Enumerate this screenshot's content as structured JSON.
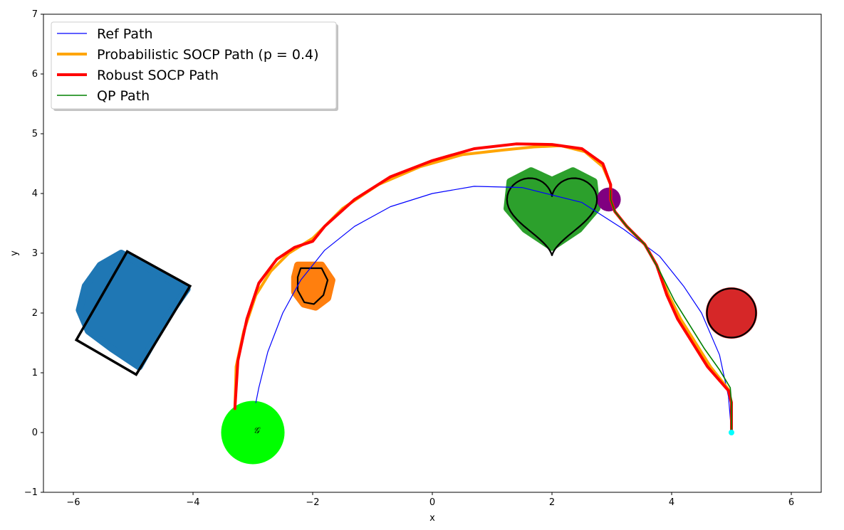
{
  "chart_data": {
    "type": "line",
    "title": "",
    "xlabel": "x",
    "ylabel": "y",
    "xlim": [
      -6.5,
      6.5
    ],
    "ylim": [
      -1,
      7
    ],
    "xticks": [
      -6,
      -4,
      -2,
      0,
      2,
      4,
      6
    ],
    "xtick_labels": [
      "−6",
      "−4",
      "−2",
      "0",
      "2",
      "4",
      "6"
    ],
    "yticks": [
      -1,
      0,
      1,
      2,
      3,
      4,
      5,
      6,
      7
    ],
    "ytick_labels": [
      "−1",
      "0",
      "1",
      "2",
      "3",
      "4",
      "5",
      "6",
      "7"
    ],
    "grid": false,
    "legend_position": "top-left",
    "series": [
      {
        "name": "Ref Path",
        "color": "#0000ff",
        "points": [
          [
            5.0,
            0.0
          ],
          [
            4.95,
            0.6
          ],
          [
            4.8,
            1.3
          ],
          [
            4.5,
            2.0
          ],
          [
            4.2,
            2.45
          ],
          [
            3.8,
            2.95
          ],
          [
            3.2,
            3.4
          ],
          [
            2.5,
            3.85
          ],
          [
            1.5,
            4.1
          ],
          [
            0.7,
            4.12
          ],
          [
            0.0,
            4.0
          ],
          [
            -0.7,
            3.78
          ],
          [
            -1.3,
            3.45
          ],
          [
            -1.8,
            3.05
          ],
          [
            -2.2,
            2.55
          ],
          [
            -2.5,
            2.0
          ],
          [
            -2.75,
            1.35
          ],
          [
            -2.9,
            0.75
          ],
          [
            -2.95,
            0.5
          ]
        ]
      },
      {
        "name": "Probabilistic SOCP Path (p = 0.4)",
        "color": "#ffa500",
        "points": [
          [
            5.0,
            0.0
          ],
          [
            5.0,
            0.5
          ],
          [
            4.95,
            0.72
          ],
          [
            4.65,
            1.1
          ],
          [
            4.4,
            1.5
          ],
          [
            4.15,
            1.9
          ],
          [
            3.95,
            2.3
          ],
          [
            3.75,
            2.8
          ],
          [
            3.55,
            3.15
          ],
          [
            3.25,
            3.45
          ],
          [
            3.05,
            3.7
          ],
          [
            2.98,
            3.9
          ],
          [
            2.98,
            4.15
          ],
          [
            2.85,
            4.45
          ],
          [
            2.55,
            4.7
          ],
          [
            2.15,
            4.8
          ],
          [
            1.7,
            4.78
          ],
          [
            1.2,
            4.73
          ],
          [
            0.5,
            4.65
          ],
          [
            -0.2,
            4.45
          ],
          [
            -0.9,
            4.15
          ],
          [
            -1.5,
            3.75
          ],
          [
            -2.0,
            3.25
          ],
          [
            -2.4,
            3.0
          ],
          [
            -2.7,
            2.7
          ],
          [
            -2.95,
            2.3
          ],
          [
            -3.15,
            1.7
          ],
          [
            -3.28,
            1.1
          ],
          [
            -3.3,
            0.4
          ]
        ]
      },
      {
        "name": "Robust SOCP Path",
        "color": "#ff0000",
        "points": [
          [
            5.0,
            0.0
          ],
          [
            5.0,
            0.5
          ],
          [
            4.95,
            0.7
          ],
          [
            4.6,
            1.1
          ],
          [
            4.35,
            1.5
          ],
          [
            4.1,
            1.9
          ],
          [
            3.92,
            2.3
          ],
          [
            3.75,
            2.8
          ],
          [
            3.55,
            3.15
          ],
          [
            3.25,
            3.45
          ],
          [
            3.05,
            3.7
          ],
          [
            2.98,
            3.9
          ],
          [
            2.98,
            4.15
          ],
          [
            2.85,
            4.5
          ],
          [
            2.5,
            4.75
          ],
          [
            2.0,
            4.82
          ],
          [
            1.4,
            4.83
          ],
          [
            0.7,
            4.75
          ],
          [
            0.0,
            4.55
          ],
          [
            -0.7,
            4.28
          ],
          [
            -1.3,
            3.9
          ],
          [
            -1.8,
            3.45
          ],
          [
            -2.0,
            3.2
          ],
          [
            -2.3,
            3.1
          ],
          [
            -2.6,
            2.9
          ],
          [
            -2.9,
            2.5
          ],
          [
            -3.1,
            1.9
          ],
          [
            -3.25,
            1.2
          ],
          [
            -3.3,
            0.4
          ]
        ]
      },
      {
        "name": "QP Path",
        "color": "#008000",
        "points": [
          [
            5.0,
            0.0
          ],
          [
            5.0,
            0.5
          ],
          [
            4.98,
            0.75
          ],
          [
            4.8,
            1.05
          ],
          [
            4.55,
            1.4
          ],
          [
            4.3,
            1.8
          ],
          [
            4.05,
            2.2
          ],
          [
            3.8,
            2.7
          ],
          [
            3.55,
            3.15
          ],
          [
            3.25,
            3.45
          ],
          [
            3.05,
            3.7
          ],
          [
            2.98,
            3.9
          ],
          [
            2.98,
            4.05
          ]
        ]
      }
    ],
    "obstacles": [
      {
        "shape": "blob",
        "color": "#1f77b4",
        "outline": [
          [
            -5.2,
            3.0
          ],
          [
            -4.55,
            2.65
          ],
          [
            -4.1,
            2.4
          ],
          [
            -4.45,
            1.9
          ],
          [
            -4.9,
            1.1
          ],
          [
            -5.35,
            1.4
          ],
          [
            -5.75,
            1.7
          ],
          [
            -5.9,
            2.05
          ],
          [
            -5.8,
            2.45
          ],
          [
            -5.55,
            2.8
          ]
        ]
      },
      {
        "shape": "polygon",
        "color": "#000000",
        "outline": [
          [
            -5.1,
            3.03
          ],
          [
            -4.05,
            2.45
          ],
          [
            -4.95,
            0.97
          ],
          [
            -5.95,
            1.55
          ]
        ]
      },
      {
        "shape": "blob",
        "color": "#ff7f0e",
        "outline": [
          [
            -2.25,
            2.8
          ],
          [
            -1.85,
            2.8
          ],
          [
            -1.68,
            2.55
          ],
          [
            -1.75,
            2.25
          ],
          [
            -1.95,
            2.1
          ],
          [
            -2.15,
            2.15
          ],
          [
            -2.3,
            2.35
          ],
          [
            -2.3,
            2.6
          ]
        ]
      },
      {
        "shape": "blob",
        "color": "#2ca02c",
        "outline": [
          [
            1.65,
            4.38
          ],
          [
            2.0,
            4.22
          ],
          [
            2.35,
            4.38
          ],
          [
            2.7,
            4.2
          ],
          [
            2.75,
            3.75
          ],
          [
            2.45,
            3.4
          ],
          [
            2.0,
            3.1
          ],
          [
            1.55,
            3.4
          ],
          [
            1.25,
            3.75
          ],
          [
            1.3,
            4.2
          ]
        ]
      },
      {
        "shape": "circle",
        "color": "#800080",
        "cx": 2.95,
        "cy": 3.9,
        "r": 0.2
      },
      {
        "shape": "circle",
        "color": "#d62728",
        "cx": 5.0,
        "cy": 2.0,
        "r": 0.43
      }
    ],
    "goal": {
      "x": -3.0,
      "y": 0.0,
      "r": 0.53,
      "color": "#00ff00",
      "label": "𝒢"
    },
    "start": {
      "x": 5.0,
      "y": 0.0,
      "color": "#00ffff"
    }
  }
}
